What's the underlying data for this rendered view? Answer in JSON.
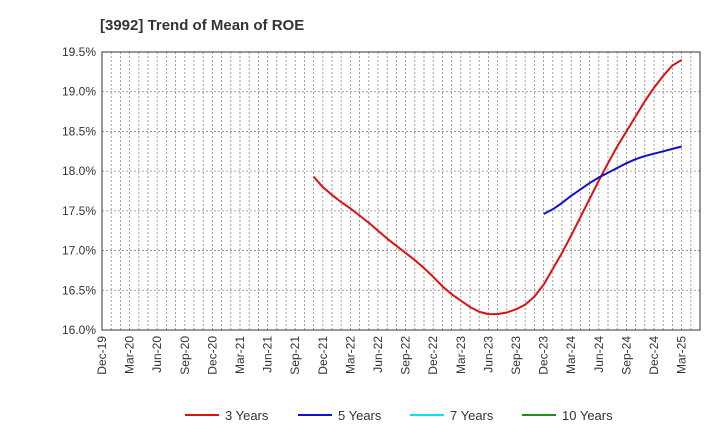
{
  "chart_data": {
    "type": "line",
    "title": "[3992]  Trend of Mean of ROE",
    "xlabel": "",
    "ylabel": "",
    "ylim": [
      16.0,
      19.5
    ],
    "y_ticks": [
      "16.0%",
      "16.5%",
      "17.0%",
      "17.5%",
      "18.0%",
      "18.5%",
      "19.0%",
      "19.5%"
    ],
    "y_tick_values": [
      16.0,
      16.5,
      17.0,
      17.5,
      18.0,
      18.5,
      19.0,
      19.5
    ],
    "x_ticks": [
      "Dec-19",
      "Mar-20",
      "Jun-20",
      "Sep-20",
      "Dec-20",
      "Mar-21",
      "Jun-21",
      "Sep-21",
      "Dec-21",
      "Mar-22",
      "Jun-22",
      "Sep-22",
      "Dec-22",
      "Mar-23",
      "Jun-23",
      "Sep-23",
      "Dec-23",
      "Mar-24",
      "Jun-24",
      "Sep-24",
      "Dec-24",
      "Mar-25"
    ],
    "x_months": [
      "2019-10",
      "2019-11",
      "2019-12",
      "2020-01",
      "2020-02",
      "2020-03",
      "2020-04",
      "2020-05",
      "2020-06",
      "2020-07",
      "2020-08",
      "2020-09",
      "2020-10",
      "2020-11",
      "2020-12",
      "2021-01",
      "2021-02",
      "2021-03",
      "2021-04",
      "2021-05",
      "2021-06",
      "2021-07",
      "2021-08",
      "2021-09",
      "2021-10",
      "2021-11",
      "2021-12",
      "2022-01",
      "2022-02",
      "2022-03",
      "2022-04",
      "2022-05",
      "2022-06",
      "2022-07",
      "2022-08",
      "2022-09",
      "2022-10",
      "2022-11",
      "2022-12",
      "2023-01",
      "2023-02",
      "2023-03",
      "2023-04",
      "2023-05",
      "2023-06",
      "2023-07",
      "2023-08",
      "2023-09",
      "2023-10",
      "2023-11",
      "2023-12",
      "2024-01",
      "2024-02",
      "2024-03",
      "2024-04",
      "2024-05",
      "2024-06",
      "2024-07",
      "2024-08",
      "2024-09",
      "2024-10",
      "2024-11",
      "2024-12",
      "2025-01",
      "2025-02",
      "2025-03"
    ],
    "grid": true,
    "legend_position": "bottom",
    "series": [
      {
        "name": "3 Years",
        "color": "#dd1111",
        "points": [
          [
            "2021-09",
            17.93
          ],
          [
            "2021-10",
            17.8
          ],
          [
            "2021-11",
            17.7
          ],
          [
            "2021-12",
            17.61
          ],
          [
            "2022-01",
            17.53
          ],
          [
            "2022-02",
            17.44
          ],
          [
            "2022-03",
            17.35
          ],
          [
            "2022-04",
            17.25
          ],
          [
            "2022-05",
            17.15
          ],
          [
            "2022-06",
            17.06
          ],
          [
            "2022-07",
            16.97
          ],
          [
            "2022-08",
            16.88
          ],
          [
            "2022-09",
            16.78
          ],
          [
            "2022-10",
            16.67
          ],
          [
            "2022-11",
            16.55
          ],
          [
            "2022-12",
            16.45
          ],
          [
            "2023-01",
            16.37
          ],
          [
            "2023-02",
            16.29
          ],
          [
            "2023-03",
            16.23
          ],
          [
            "2023-04",
            16.2
          ],
          [
            "2023-05",
            16.2
          ],
          [
            "2023-06",
            16.22
          ],
          [
            "2023-07",
            16.26
          ],
          [
            "2023-08",
            16.32
          ],
          [
            "2023-09",
            16.42
          ],
          [
            "2023-10",
            16.57
          ],
          [
            "2023-11",
            16.77
          ],
          [
            "2023-12",
            16.97
          ],
          [
            "2024-01",
            17.19
          ],
          [
            "2024-02",
            17.42
          ],
          [
            "2024-03",
            17.65
          ],
          [
            "2024-04",
            17.88
          ],
          [
            "2024-05",
            18.1
          ],
          [
            "2024-06",
            18.31
          ],
          [
            "2024-07",
            18.5
          ],
          [
            "2024-08",
            18.69
          ],
          [
            "2024-09",
            18.88
          ],
          [
            "2024-10",
            19.05
          ],
          [
            "2024-11",
            19.2
          ],
          [
            "2024-12",
            19.33
          ],
          [
            "2025-01",
            19.4
          ]
        ]
      },
      {
        "name": "5 Years",
        "color": "#1111cc",
        "points": [
          [
            "2023-10",
            17.46
          ],
          [
            "2023-11",
            17.52
          ],
          [
            "2023-12",
            17.6
          ],
          [
            "2024-01",
            17.69
          ],
          [
            "2024-02",
            17.77
          ],
          [
            "2024-03",
            17.85
          ],
          [
            "2024-04",
            17.92
          ],
          [
            "2024-05",
            17.98
          ],
          [
            "2024-06",
            18.04
          ],
          [
            "2024-07",
            18.1
          ],
          [
            "2024-08",
            18.15
          ],
          [
            "2024-09",
            18.19
          ],
          [
            "2024-10",
            18.22
          ],
          [
            "2024-11",
            18.25
          ],
          [
            "2024-12",
            18.28
          ],
          [
            "2025-01",
            18.31
          ]
        ]
      },
      {
        "name": "7 Years",
        "color": "#00e5ee",
        "points": []
      },
      {
        "name": "10 Years",
        "color": "#228b22",
        "points": []
      }
    ]
  }
}
